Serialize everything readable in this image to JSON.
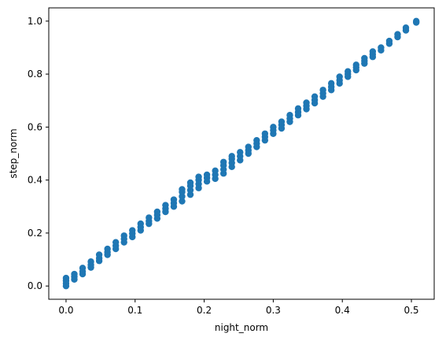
{
  "chart_data": {
    "type": "scatter",
    "title": "",
    "xlabel": "night_norm",
    "ylabel": "step_norm",
    "xlim": [
      -0.025,
      0.533
    ],
    "ylim": [
      -0.05,
      1.05
    ],
    "xticks": [
      0.0,
      0.1,
      0.2,
      0.3,
      0.4,
      0.5
    ],
    "xtick_labels": [
      "0.0",
      "0.1",
      "0.2",
      "0.3",
      "0.4",
      "0.5"
    ],
    "yticks": [
      0.0,
      0.2,
      0.4,
      0.6,
      0.8,
      1.0
    ],
    "ytick_labels": [
      "0.0",
      "0.2",
      "0.4",
      "0.6",
      "0.8",
      "1.0"
    ],
    "grid": false,
    "color": "#1f77b4",
    "series": [
      {
        "points": [
          [
            0.0,
            0.0
          ],
          [
            0.0,
            0.01
          ],
          [
            0.0,
            0.02
          ],
          [
            0.0,
            0.03
          ],
          [
            0.012,
            0.025
          ],
          [
            0.012,
            0.035
          ],
          [
            0.012,
            0.045
          ],
          [
            0.024,
            0.045
          ],
          [
            0.024,
            0.055
          ],
          [
            0.024,
            0.068
          ],
          [
            0.036,
            0.07
          ],
          [
            0.036,
            0.08
          ],
          [
            0.036,
            0.092
          ],
          [
            0.048,
            0.095
          ],
          [
            0.048,
            0.105
          ],
          [
            0.048,
            0.118
          ],
          [
            0.06,
            0.118
          ],
          [
            0.06,
            0.128
          ],
          [
            0.06,
            0.14
          ],
          [
            0.072,
            0.14
          ],
          [
            0.072,
            0.152
          ],
          [
            0.072,
            0.165
          ],
          [
            0.084,
            0.165
          ],
          [
            0.084,
            0.178
          ],
          [
            0.084,
            0.19
          ],
          [
            0.096,
            0.185
          ],
          [
            0.096,
            0.198
          ],
          [
            0.096,
            0.21
          ],
          [
            0.108,
            0.21
          ],
          [
            0.108,
            0.222
          ],
          [
            0.108,
            0.235
          ],
          [
            0.12,
            0.235
          ],
          [
            0.12,
            0.245
          ],
          [
            0.12,
            0.258
          ],
          [
            0.132,
            0.255
          ],
          [
            0.132,
            0.268
          ],
          [
            0.132,
            0.28
          ],
          [
            0.144,
            0.28
          ],
          [
            0.144,
            0.292
          ],
          [
            0.144,
            0.305
          ],
          [
            0.156,
            0.3
          ],
          [
            0.156,
            0.313
          ],
          [
            0.156,
            0.326
          ],
          [
            0.168,
            0.32
          ],
          [
            0.168,
            0.338
          ],
          [
            0.168,
            0.355
          ],
          [
            0.168,
            0.365
          ],
          [
            0.18,
            0.345
          ],
          [
            0.18,
            0.362
          ],
          [
            0.18,
            0.378
          ],
          [
            0.18,
            0.39
          ],
          [
            0.192,
            0.37
          ],
          [
            0.192,
            0.385
          ],
          [
            0.192,
            0.4
          ],
          [
            0.192,
            0.412
          ],
          [
            0.204,
            0.395
          ],
          [
            0.204,
            0.408
          ],
          [
            0.204,
            0.42
          ],
          [
            0.216,
            0.405
          ],
          [
            0.216,
            0.42
          ],
          [
            0.216,
            0.435
          ],
          [
            0.228,
            0.425
          ],
          [
            0.228,
            0.44
          ],
          [
            0.228,
            0.455
          ],
          [
            0.228,
            0.468
          ],
          [
            0.24,
            0.45
          ],
          [
            0.24,
            0.465
          ],
          [
            0.24,
            0.48
          ],
          [
            0.24,
            0.49
          ],
          [
            0.252,
            0.475
          ],
          [
            0.252,
            0.49
          ],
          [
            0.252,
            0.505
          ],
          [
            0.264,
            0.5
          ],
          [
            0.264,
            0.512
          ],
          [
            0.264,
            0.525
          ],
          [
            0.276,
            0.525
          ],
          [
            0.276,
            0.538
          ],
          [
            0.276,
            0.55
          ],
          [
            0.288,
            0.55
          ],
          [
            0.288,
            0.563
          ],
          [
            0.288,
            0.575
          ],
          [
            0.3,
            0.575
          ],
          [
            0.3,
            0.588
          ],
          [
            0.3,
            0.6
          ],
          [
            0.312,
            0.595
          ],
          [
            0.312,
            0.608
          ],
          [
            0.312,
            0.62
          ],
          [
            0.324,
            0.62
          ],
          [
            0.324,
            0.632
          ],
          [
            0.324,
            0.645
          ],
          [
            0.336,
            0.645
          ],
          [
            0.336,
            0.657
          ],
          [
            0.336,
            0.67
          ],
          [
            0.348,
            0.668
          ],
          [
            0.348,
            0.68
          ],
          [
            0.348,
            0.692
          ],
          [
            0.36,
            0.69
          ],
          [
            0.36,
            0.702
          ],
          [
            0.36,
            0.715
          ],
          [
            0.372,
            0.715
          ],
          [
            0.372,
            0.727
          ],
          [
            0.372,
            0.74
          ],
          [
            0.384,
            0.74
          ],
          [
            0.384,
            0.752
          ],
          [
            0.384,
            0.765
          ],
          [
            0.396,
            0.765
          ],
          [
            0.396,
            0.777
          ],
          [
            0.396,
            0.79
          ],
          [
            0.408,
            0.79
          ],
          [
            0.408,
            0.8
          ],
          [
            0.408,
            0.81
          ],
          [
            0.42,
            0.815
          ],
          [
            0.42,
            0.825
          ],
          [
            0.42,
            0.835
          ],
          [
            0.432,
            0.84
          ],
          [
            0.432,
            0.85
          ],
          [
            0.432,
            0.86
          ],
          [
            0.444,
            0.865
          ],
          [
            0.444,
            0.875
          ],
          [
            0.444,
            0.885
          ],
          [
            0.456,
            0.89
          ],
          [
            0.456,
            0.9
          ],
          [
            0.468,
            0.915
          ],
          [
            0.468,
            0.925
          ],
          [
            0.48,
            0.94
          ],
          [
            0.48,
            0.95
          ],
          [
            0.492,
            0.965
          ],
          [
            0.492,
            0.975
          ],
          [
            0.507,
            0.995
          ],
          [
            0.507,
            1.0
          ]
        ]
      }
    ]
  }
}
